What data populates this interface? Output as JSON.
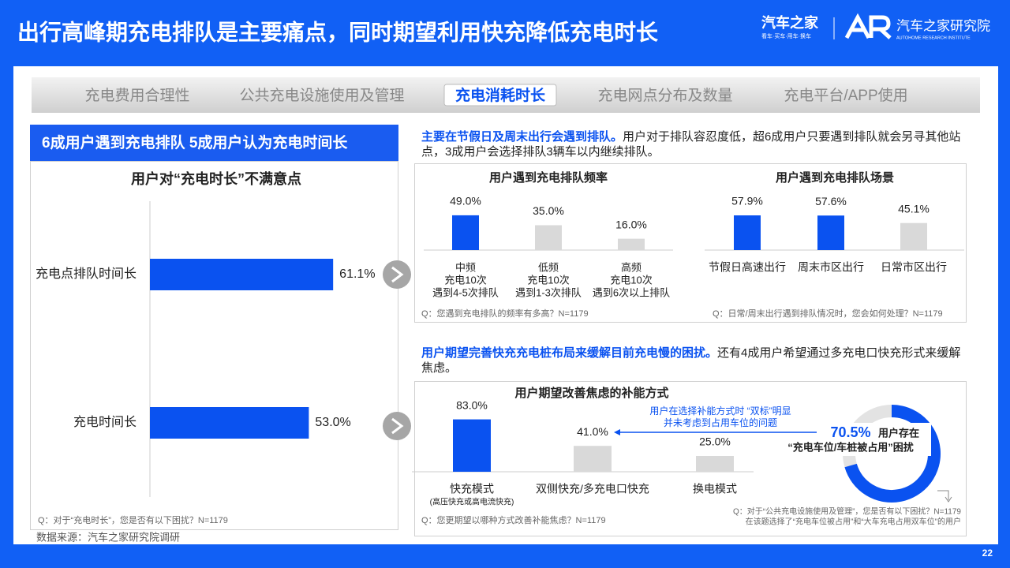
{
  "header": {
    "title": "出行高峰期充电排队是主要痛点，同时期望利用快充降低充电时长",
    "brand": "汽车之家",
    "brand_slogan": "看车·买车·用车·换车",
    "institute": "汽车之家研究院",
    "institute_en": "AUTOHOME RESEARCH INSTITUTE"
  },
  "tabs": {
    "items": [
      "充电费用合理性",
      "公共充电设施使用及管理",
      "充电消耗时长",
      "充电网点分布及数量",
      "充电平台/APP使用"
    ],
    "active": 2
  },
  "left_heading": "6成用户遇到充电排队 5成用户认为充电时间长",
  "intro_top": {
    "highlight": "主要在节假日及周末出行会遇到排队。",
    "text": "用户对于排队容忍度低，超6成用户只要遇到排队就会另寻其他站点，3成用户会选择排队3辆车以内继续排队。"
  },
  "intro_bottom": {
    "highlight": "用户期望完善快充充电桩布局来缓解目前充电慢的困扰。",
    "text": "还有4成用户希望通过多充电口快充形式来缓解焦虑。"
  },
  "source": "数据来源：汽车之家研究院调研",
  "page_number": "22",
  "chart_data": [
    {
      "type": "hbar",
      "title": "用户对“充电时长”不满意点",
      "categories": [
        "充电点排队时间长",
        "充电时间长"
      ],
      "values": [
        61.1,
        53.0
      ],
      "value_labels": [
        "61.1%",
        "53.0%"
      ],
      "color": "#0a52f0",
      "xlim": [
        0,
        100
      ],
      "note": "Q：对于“充电时长”，您是否有以下困扰？N=1179"
    },
    {
      "type": "bar",
      "title": "用户遇到充电排队频率",
      "categories": [
        [
          "中频",
          "充电10次",
          "遇到4-5次排队"
        ],
        [
          "低频",
          "充电10次",
          "遇到1-3次排队"
        ],
        [
          "高频",
          "充电10次",
          "遇到6次以上排队"
        ]
      ],
      "values": [
        49.0,
        35.0,
        16.0
      ],
      "value_labels": [
        "49.0%",
        "35.0%",
        "16.0%"
      ],
      "colors": [
        "#0a52f0",
        "#d9d9d9",
        "#d9d9d9"
      ],
      "ylim": [
        0,
        100
      ],
      "note": "Q：您遇到充电排队的频率有多高？N=1179"
    },
    {
      "type": "bar",
      "title": "用户遇到充电排队场景",
      "categories": [
        [
          "节假日高速出行"
        ],
        [
          "周末市区出行"
        ],
        [
          "日常市区出行"
        ]
      ],
      "values": [
        57.9,
        57.6,
        45.1
      ],
      "value_labels": [
        "57.9%",
        "57.6%",
        "45.1%"
      ],
      "colors": [
        "#0a52f0",
        "#0a52f0",
        "#d9d9d9"
      ],
      "ylim": [
        0,
        100
      ],
      "note": "Q：日常/周末出行遇到排队情况时，您会如何处理？N=1179"
    },
    {
      "type": "bar",
      "title": "用户期望改善焦虑的补能方式",
      "categories": [
        [
          "快充模式",
          "(高压快充或高电流快充)"
        ],
        [
          "双侧快充/多充电口快充"
        ],
        [
          "换电模式"
        ]
      ],
      "values": [
        83.0,
        41.0,
        25.0
      ],
      "value_labels": [
        "83.0%",
        "41.0%",
        "25.0%"
      ],
      "colors": [
        "#0a52f0",
        "#d9d9d9",
        "#d9d9d9"
      ],
      "ylim": [
        0,
        100
      ],
      "annotation": [
        "用户在选择补能方式时 “双标”明显",
        "并未考虑到占用车位的问题"
      ],
      "note": "Q：您更期望以哪种方式改善补能焦虑？N=1179"
    },
    {
      "type": "donut",
      "values": [
        70.5
      ],
      "value_labels": [
        "70.5%"
      ],
      "color": "#0a52f0",
      "label": [
        "用户存在",
        "“充电车位/车桩被占用”困扰"
      ],
      "note": [
        "Q：对于“公共充电设施使用及管理”，您是否有以下困扰？N=1179",
        "在该题选择了“充电车位被占用”和“大车充电占用双车位”的用户"
      ]
    }
  ]
}
